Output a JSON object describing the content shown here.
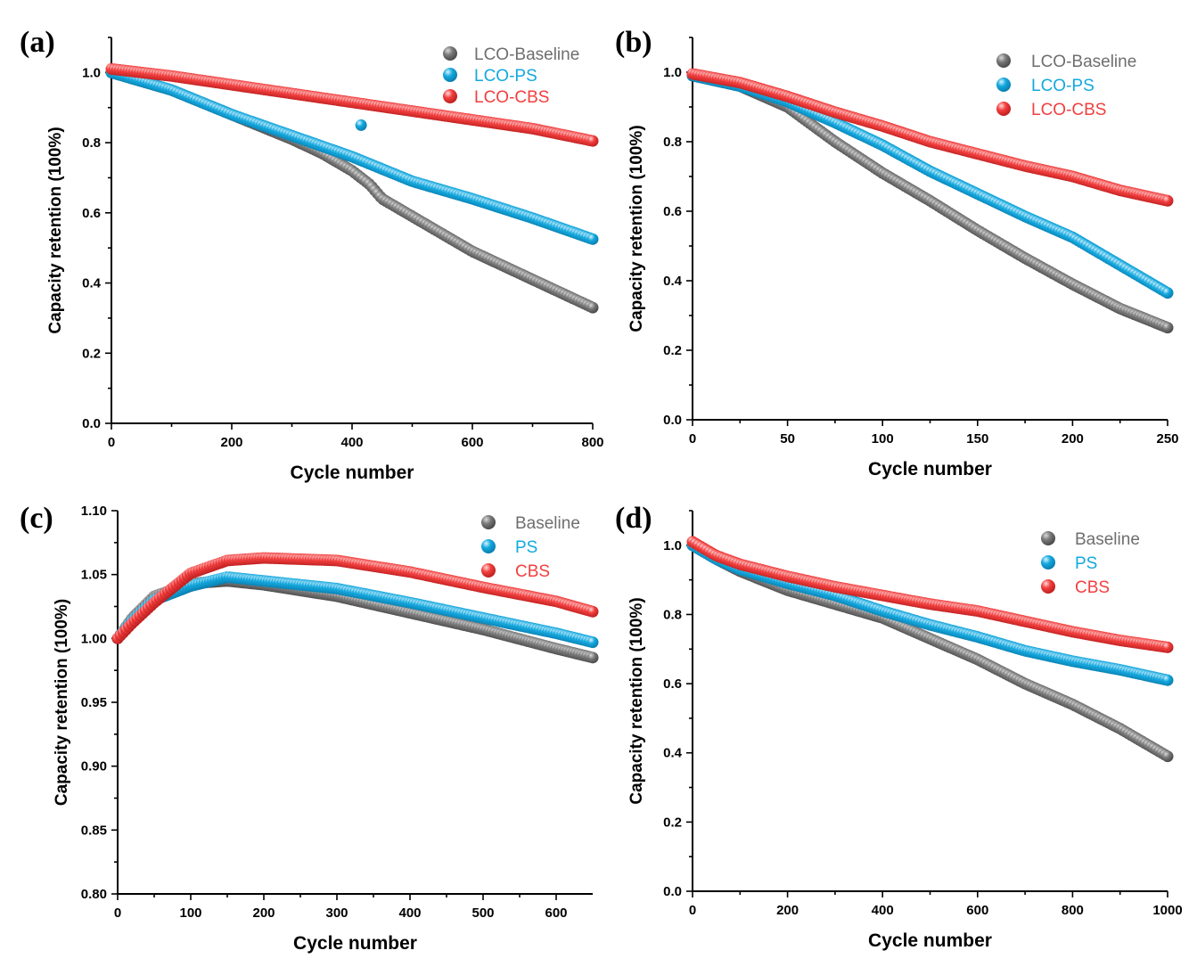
{
  "colors": {
    "gray": "#6e6e6e",
    "blue": "#14a8de",
    "red": "#f23f3f"
  },
  "chart_data": [
    {
      "panel_label": "(a)",
      "type": "scatter",
      "xlabel": "Cycle number",
      "ylabel": "Capacity retention (100%)",
      "xlim": [
        0,
        800
      ],
      "ylim": [
        0,
        1.1
      ],
      "xticks": [
        "0",
        "200",
        "400",
        "600",
        "800"
      ],
      "yticks": [
        "0.0",
        "0.2",
        "0.4",
        "0.6",
        "0.8",
        "1.0"
      ],
      "legend_position": "top-right",
      "series": [
        {
          "name": "LCO-Baseline",
          "color": "gray",
          "points": [
            [
              0,
              1.0
            ],
            [
              100,
              0.95
            ],
            [
              200,
              0.88
            ],
            [
              300,
              0.81
            ],
            [
              350,
              0.77
            ],
            [
              400,
              0.72
            ],
            [
              430,
              0.68
            ],
            [
              450,
              0.64
            ],
            [
              500,
              0.59
            ],
            [
              600,
              0.49
            ],
            [
              700,
              0.41
            ],
            [
              800,
              0.33
            ]
          ]
        },
        {
          "name": "LCO-PS",
          "color": "blue",
          "points": [
            [
              0,
              1.0
            ],
            [
              100,
              0.95
            ],
            [
              200,
              0.88
            ],
            [
              300,
              0.82
            ],
            [
              400,
              0.76
            ],
            [
              500,
              0.69
            ],
            [
              600,
              0.64
            ],
            [
              700,
              0.585
            ],
            [
              800,
              0.525
            ]
          ],
          "outlier": [
            415,
            0.85
          ]
        },
        {
          "name": "LCO-CBS",
          "color": "red",
          "points": [
            [
              0,
              1.01
            ],
            [
              100,
              0.99
            ],
            [
              200,
              0.965
            ],
            [
              300,
              0.94
            ],
            [
              400,
              0.915
            ],
            [
              500,
              0.89
            ],
            [
              600,
              0.865
            ],
            [
              700,
              0.84
            ],
            [
              800,
              0.805
            ]
          ]
        }
      ]
    },
    {
      "panel_label": "(b)",
      "type": "scatter",
      "xlabel": "Cycle number",
      "ylabel": "Capacity retention (100%)",
      "xlim": [
        0,
        250
      ],
      "ylim": [
        0,
        1.1
      ],
      "xticks": [
        "0",
        "50",
        "100",
        "150",
        "200",
        "250"
      ],
      "yticks": [
        "0.0",
        "0.2",
        "0.4",
        "0.6",
        "0.8",
        "1.0"
      ],
      "legend_position": "top-right",
      "series": [
        {
          "name": "LCO-Baseline",
          "color": "gray",
          "points": [
            [
              0,
              0.99
            ],
            [
              25,
              0.96
            ],
            [
              50,
              0.9
            ],
            [
              75,
              0.8
            ],
            [
              100,
              0.71
            ],
            [
              125,
              0.63
            ],
            [
              150,
              0.545
            ],
            [
              175,
              0.465
            ],
            [
              200,
              0.39
            ],
            [
              225,
              0.32
            ],
            [
              250,
              0.265
            ]
          ]
        },
        {
          "name": "LCO-PS",
          "color": "blue",
          "points": [
            [
              0,
              0.99
            ],
            [
              25,
              0.96
            ],
            [
              50,
              0.915
            ],
            [
              75,
              0.855
            ],
            [
              100,
              0.79
            ],
            [
              125,
              0.715
            ],
            [
              150,
              0.65
            ],
            [
              175,
              0.585
            ],
            [
              200,
              0.525
            ],
            [
              225,
              0.445
            ],
            [
              250,
              0.365
            ]
          ]
        },
        {
          "name": "LCO-CBS",
          "color": "red",
          "points": [
            [
              0,
              0.995
            ],
            [
              25,
              0.97
            ],
            [
              50,
              0.93
            ],
            [
              75,
              0.885
            ],
            [
              100,
              0.845
            ],
            [
              125,
              0.8
            ],
            [
              150,
              0.765
            ],
            [
              175,
              0.73
            ],
            [
              200,
              0.7
            ],
            [
              225,
              0.66
            ],
            [
              250,
              0.63
            ]
          ]
        }
      ]
    },
    {
      "panel_label": "(c)",
      "type": "scatter",
      "xlabel": "Cycle number",
      "ylabel": "Capacity retention (100%)",
      "xlim": [
        0,
        650
      ],
      "ylim": [
        0.8,
        1.1
      ],
      "xticks": [
        "0",
        "100",
        "200",
        "300",
        "400",
        "500",
        "600"
      ],
      "yticks": [
        "0.80",
        "0.85",
        "0.90",
        "0.95",
        "1.00",
        "1.05",
        "1.10"
      ],
      "legend_position": "top-right",
      "series": [
        {
          "name": "Baseline",
          "color": "gray",
          "points": [
            [
              0,
              1.0
            ],
            [
              20,
              1.016
            ],
            [
              50,
              1.033
            ],
            [
              100,
              1.043
            ],
            [
              150,
              1.045
            ],
            [
              200,
              1.042
            ],
            [
              300,
              1.033
            ],
            [
              400,
              1.02
            ],
            [
              500,
              1.007
            ],
            [
              600,
              0.992
            ],
            [
              650,
              0.985
            ]
          ]
        },
        {
          "name": "PS",
          "color": "blue",
          "points": [
            [
              0,
              1.0
            ],
            [
              20,
              1.014
            ],
            [
              50,
              1.03
            ],
            [
              100,
              1.041
            ],
            [
              150,
              1.048
            ],
            [
              200,
              1.045
            ],
            [
              300,
              1.039
            ],
            [
              400,
              1.028
            ],
            [
              500,
              1.016
            ],
            [
              600,
              1.004
            ],
            [
              650,
              0.997
            ]
          ]
        },
        {
          "name": "CBS",
          "color": "red",
          "points": [
            [
              0,
              1.0
            ],
            [
              20,
              1.012
            ],
            [
              50,
              1.028
            ],
            [
              100,
              1.051
            ],
            [
              150,
              1.061
            ],
            [
              200,
              1.063
            ],
            [
              300,
              1.061
            ],
            [
              400,
              1.052
            ],
            [
              500,
              1.04
            ],
            [
              600,
              1.029
            ],
            [
              650,
              1.021
            ]
          ]
        }
      ]
    },
    {
      "panel_label": "(d)",
      "type": "scatter",
      "xlabel": "Cycle number",
      "ylabel": "Capacity retention (100%)",
      "xlim": [
        0,
        1000
      ],
      "ylim": [
        0,
        1.1
      ],
      "xticks": [
        "0",
        "200",
        "400",
        "600",
        "800",
        "1000"
      ],
      "yticks": [
        "0.0",
        "0.2",
        "0.4",
        "0.6",
        "0.8",
        "1.0"
      ],
      "legend_position": "top-right",
      "series": [
        {
          "name": "Baseline",
          "color": "gray",
          "points": [
            [
              0,
              1.0
            ],
            [
              50,
              0.96
            ],
            [
              100,
              0.925
            ],
            [
              200,
              0.87
            ],
            [
              300,
              0.83
            ],
            [
              400,
              0.79
            ],
            [
              500,
              0.73
            ],
            [
              600,
              0.67
            ],
            [
              700,
              0.6
            ],
            [
              800,
              0.54
            ],
            [
              900,
              0.47
            ],
            [
              1000,
              0.39
            ]
          ]
        },
        {
          "name": "PS",
          "color": "blue",
          "points": [
            [
              0,
              1.0
            ],
            [
              50,
              0.96
            ],
            [
              100,
              0.93
            ],
            [
              200,
              0.89
            ],
            [
              300,
              0.855
            ],
            [
              400,
              0.81
            ],
            [
              500,
              0.77
            ],
            [
              600,
              0.735
            ],
            [
              700,
              0.695
            ],
            [
              800,
              0.665
            ],
            [
              900,
              0.64
            ],
            [
              1000,
              0.61
            ]
          ]
        },
        {
          "name": "CBS",
          "color": "red",
          "points": [
            [
              0,
              1.01
            ],
            [
              50,
              0.97
            ],
            [
              100,
              0.945
            ],
            [
              200,
              0.91
            ],
            [
              300,
              0.88
            ],
            [
              400,
              0.855
            ],
            [
              500,
              0.83
            ],
            [
              600,
              0.81
            ],
            [
              700,
              0.78
            ],
            [
              800,
              0.75
            ],
            [
              900,
              0.725
            ],
            [
              1000,
              0.705
            ]
          ]
        }
      ]
    }
  ]
}
